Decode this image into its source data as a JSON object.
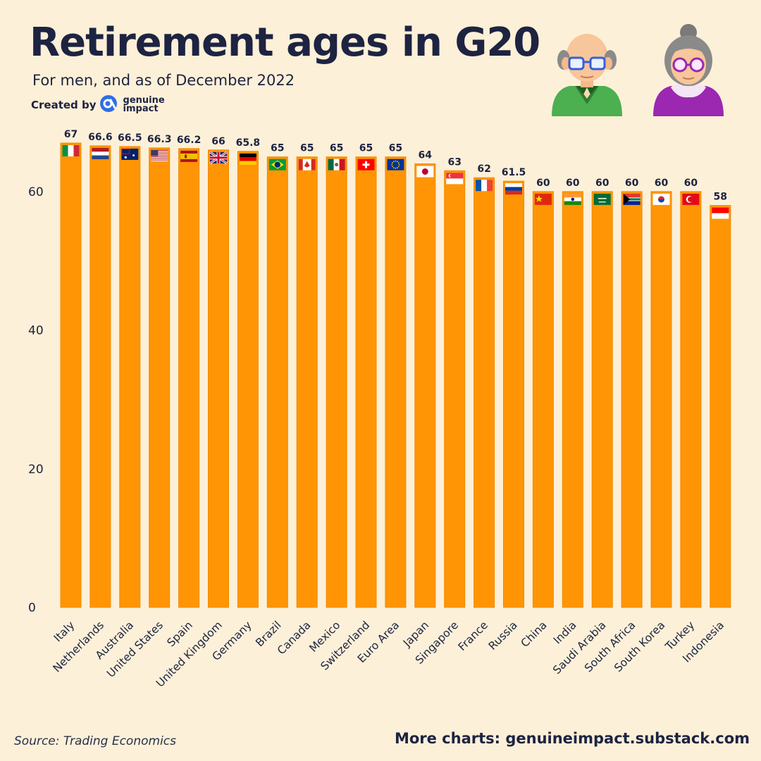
{
  "title": "Retirement ages in G20",
  "subtitle": "For men, and as of December 2022",
  "credit": {
    "prefix": "Created by",
    "brand_line1": "genuine",
    "brand_line2": "impact"
  },
  "footer": {
    "source": "Source: Trading Economics",
    "more": "More charts: genuineimpact.substack.com"
  },
  "colors": {
    "bar": "#ff9505",
    "bar_edge": "#f08a00",
    "background": "#fdf0d8",
    "text": "#1d2341"
  },
  "chart_data": {
    "type": "bar",
    "title": "Retirement ages in G20",
    "subtitle": "For men, and as of December 2022",
    "xlabel": "",
    "ylabel": "",
    "ylim": [
      0,
      67
    ],
    "yticks": [
      0,
      20,
      40,
      60
    ],
    "grid": false,
    "categories": [
      "Italy",
      "Netherlands",
      "Australia",
      "United States",
      "Spain",
      "United Kingdom",
      "Germany",
      "Brazil",
      "Canada",
      "Mexico",
      "Switzerland",
      "Euro Area",
      "Japan",
      "Singapore",
      "France",
      "Russia",
      "China",
      "India",
      "Saudi Arabia",
      "South Africa",
      "South Korea",
      "Turkey",
      "Indonesia"
    ],
    "values": [
      67,
      66.6,
      66.5,
      66.3,
      66.2,
      66,
      65.8,
      65,
      65,
      65,
      65,
      65,
      64,
      63,
      62,
      61.5,
      60,
      60,
      60,
      60,
      60,
      60,
      58
    ],
    "value_labels": [
      "67",
      "66.6",
      "66.5",
      "66.3",
      "66.2",
      "66",
      "65.8",
      "65",
      "65",
      "65",
      "65",
      "65",
      "64",
      "63",
      "62",
      "61.5",
      "60",
      "60",
      "60",
      "60",
      "60",
      "60",
      "58"
    ],
    "flags": [
      "italy-flag",
      "netherlands-flag",
      "australia-flag",
      "united-states-flag",
      "spain-flag",
      "united-kingdom-flag",
      "germany-flag",
      "brazil-flag",
      "canada-flag",
      "mexico-flag",
      "switzerland-flag",
      "euro-area-flag",
      "japan-flag",
      "singapore-flag",
      "france-flag",
      "russia-flag",
      "china-flag",
      "india-flag",
      "saudi-arabia-flag",
      "south-africa-flag",
      "south-korea-flag",
      "turkey-flag",
      "indonesia-flag"
    ]
  }
}
